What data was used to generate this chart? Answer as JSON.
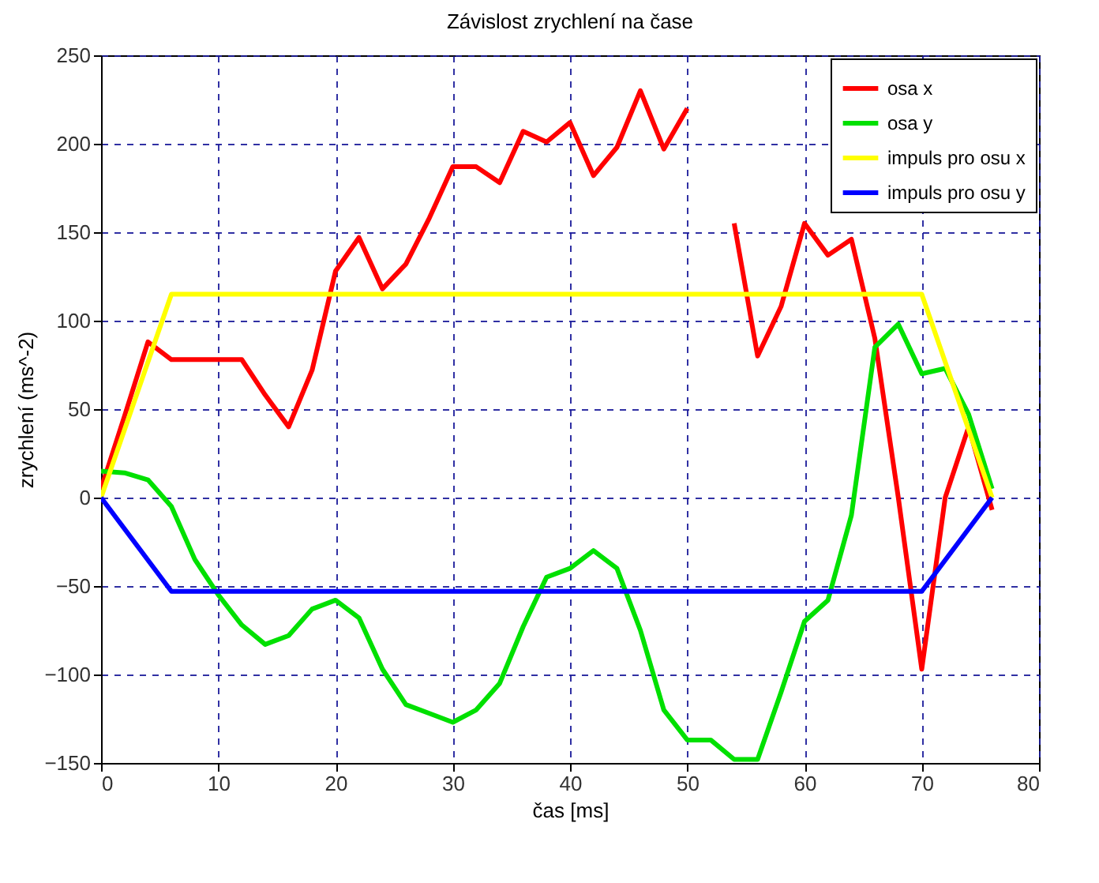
{
  "chart_data": {
    "type": "line",
    "title": "Závislost zrychlení na čase",
    "xlabel": "čas [ms]",
    "ylabel": "zrychlení (ms^-2)",
    "xlim": [
      0,
      80
    ],
    "xticks": [
      0,
      10,
      20,
      30,
      40,
      50,
      60,
      70,
      80
    ],
    "ylim": [
      -150,
      250
    ],
    "yticks": [
      -150,
      -100,
      -50,
      0,
      50,
      100,
      150,
      200,
      250
    ],
    "grid": true,
    "legend": "top right",
    "line_style": "solid",
    "x": [
      0,
      2,
      4,
      6,
      8,
      10,
      12,
      14,
      16,
      18,
      20,
      22,
      24,
      26,
      28,
      30,
      32,
      34,
      36,
      38,
      40,
      42,
      44,
      46,
      48,
      50,
      52,
      54,
      56,
      58,
      60,
      62,
      64,
      66,
      68,
      70,
      72,
      74,
      76
    ],
    "series": [
      {
        "name": "osa x",
        "color": "#ff0000",
        "values": [
          5,
          46,
          88,
          78,
          78,
          78,
          78,
          58,
          40,
          72,
          128,
          147,
          118,
          132,
          158,
          187,
          187,
          178,
          207,
          201,
          212,
          182,
          198,
          230,
          197,
          220,
          null,
          155,
          80,
          108,
          155,
          137,
          146,
          90,
          0,
          -97,
          0,
          40,
          -7
        ]
      },
      {
        "name": "osa y",
        "color": "#00e000",
        "values": [
          15,
          14,
          10,
          -5,
          -35,
          -55,
          -72,
          -83,
          -78,
          -63,
          -58,
          -68,
          -97,
          -117,
          -122,
          -127,
          -120,
          -105,
          -73,
          -45,
          -40,
          -30,
          -40,
          -75,
          -120,
          -137,
          -137,
          -148,
          -148,
          -110,
          -70,
          -58,
          -10,
          85,
          98,
          70,
          73,
          47,
          5
        ]
      },
      {
        "name": "impuls pro osu x",
        "color": "#ffff00",
        "x": [
          0,
          6,
          70,
          76
        ],
        "values": [
          0,
          115,
          115,
          0
        ]
      },
      {
        "name": "impuls pro osu y",
        "color": "#0000ff",
        "x": [
          0,
          6,
          70,
          76
        ],
        "values": [
          0,
          -53,
          -53,
          0
        ]
      }
    ]
  }
}
